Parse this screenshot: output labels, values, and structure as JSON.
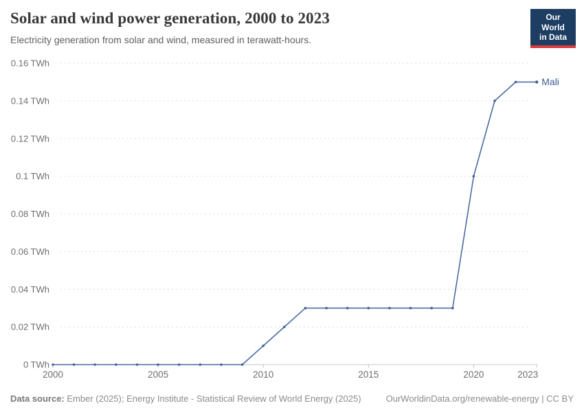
{
  "header": {
    "title": "Solar and wind power generation, 2000 to 2023",
    "subtitle": "Electricity generation from solar and wind, measured in terawatt-hours.",
    "logo": {
      "line1": "Our World",
      "line2": "in Data",
      "bg_color": "#1d3d63",
      "accent_color": "#d93a3c"
    }
  },
  "chart_data": {
    "type": "line",
    "title": "Solar and wind power generation, 2000 to 2023",
    "subtitle": "Electricity generation from solar and wind, measured in terawatt-hours.",
    "unit": "TWh",
    "x": [
      2000,
      2001,
      2002,
      2003,
      2004,
      2005,
      2006,
      2007,
      2008,
      2009,
      2010,
      2011,
      2012,
      2013,
      2014,
      2015,
      2016,
      2017,
      2018,
      2019,
      2020,
      2021,
      2022,
      2023
    ],
    "series": [
      {
        "name": "Mali",
        "color": "#4c6aa0",
        "point_color": "#44619b",
        "label_color": "#3d5c94",
        "values": [
          0,
          0,
          0,
          0,
          0,
          0,
          0,
          0,
          0,
          0,
          0.01,
          0.02,
          0.03,
          0.03,
          0.03,
          0.03,
          0.03,
          0.03,
          0.03,
          0.03,
          0.1,
          0.14,
          0.15,
          0.15
        ]
      }
    ],
    "ylim": [
      0,
      0.16
    ],
    "yticks": [
      0,
      0.02,
      0.04,
      0.06,
      0.08,
      0.1,
      0.12,
      0.14,
      0.16
    ],
    "ytick_labels": [
      "0 TWh",
      "0.02 TWh",
      "0.04 TWh",
      "0.06 TWh",
      "0.08 TWh",
      "0.1 TWh",
      "0.12 TWh",
      "0.14 TWh",
      "0.16 TWh"
    ],
    "xticks": [
      2000,
      2005,
      2010,
      2015,
      2020,
      2023
    ],
    "xtick_labels": [
      "2000",
      "2005",
      "2010",
      "2015",
      "2020",
      "2023"
    ],
    "grid": "horizontal-dashed",
    "legend_position": "end-of-line-label",
    "axis_color": "#c4c4c4",
    "grid_color": "#dcdcdc",
    "tick_label_color": "#6e6e6e"
  },
  "footer": {
    "datasource_label": "Data source:",
    "datasource_text": " Ember (2025); Energy Institute - Statistical Review of World Energy (2025)",
    "link_text": "OurWorldinData.org/renewable-energy | CC BY"
  }
}
